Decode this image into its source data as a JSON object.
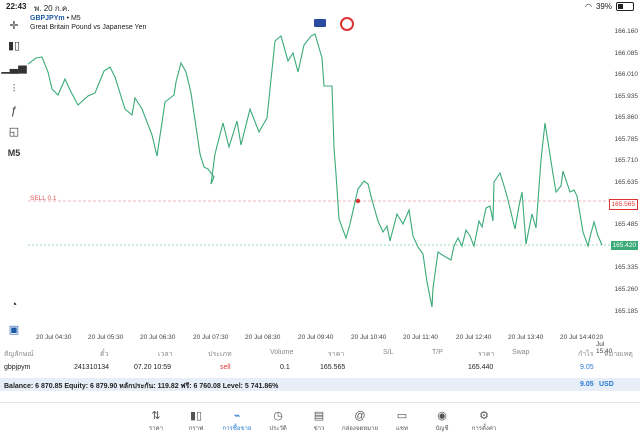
{
  "status": {
    "time": "22:43",
    "date": "พ. 20 ก.ค.",
    "battery": "39%"
  },
  "chart": {
    "symbol": "GBPJPYm",
    "timeframe": "M5",
    "description": "Great Britain Pound vs Japanese Yen",
    "timeframe_badge": "M5",
    "sell_label": "SELL 0.1",
    "sell_price_tag": "165.565",
    "current_price_tag": "165.420",
    "line_color": "#3aaa78",
    "price_labels": [
      "166.160",
      "166.085",
      "166.010",
      "165.935",
      "165.860",
      "165.785",
      "165.710",
      "165.635",
      "165.565",
      "165.485",
      "165.420",
      "165.335",
      "165.260",
      "165.185"
    ],
    "time_labels": [
      "20 Jul 04:30",
      "20 Jul 05:30",
      "20 Jul 06:30",
      "20 Jul 07:30",
      "20 Jul 08:30",
      "20 Jul 09:40",
      "20 Jul 10:40",
      "20 Jul 11:40",
      "20 Jul 12:40",
      "20 Jul 13:40",
      "20 Jul 14:40",
      "20 Jul 15:40"
    ]
  },
  "table": {
    "headers": [
      "สัญลักษณ์",
      "ตั๋ว",
      "เวลา",
      "ประเภท",
      "Volume",
      "ราคา",
      "S/L",
      "T/P",
      "ราคา",
      "Swap",
      "กำไร",
      "หมายเหตุ"
    ],
    "row": {
      "symbol": "gbpjpym",
      "ticket": "241310134",
      "time": "07.20 10:59",
      "type": "sell",
      "volume": "0.1",
      "open_price": "165.565",
      "price": "165.440",
      "profit": "9.05"
    },
    "balance_text": "Balance: 6 870.85 Equity: 6 879.90 หลักประกัน: 119.82 ฟรี: 6 760.08 Level: 5 741.86%",
    "total_profit": "9.05",
    "currency": "USD"
  },
  "nav": [
    {
      "label": "ราคา",
      "icon": "arrows-icon"
    },
    {
      "label": "กราฟ",
      "icon": "candles-icon"
    },
    {
      "label": "การซื้อขาย",
      "icon": "trade-icon"
    },
    {
      "label": "ประวัติ",
      "icon": "history-icon"
    },
    {
      "label": "ข่าว",
      "icon": "news-icon"
    },
    {
      "label": "กล่องจดหมาย",
      "icon": "mail-icon"
    },
    {
      "label": "แชท",
      "icon": "chat-icon"
    },
    {
      "label": "บัญชี",
      "icon": "account-icon"
    },
    {
      "label": "การตั้งค่า",
      "icon": "settings-icon"
    }
  ]
}
